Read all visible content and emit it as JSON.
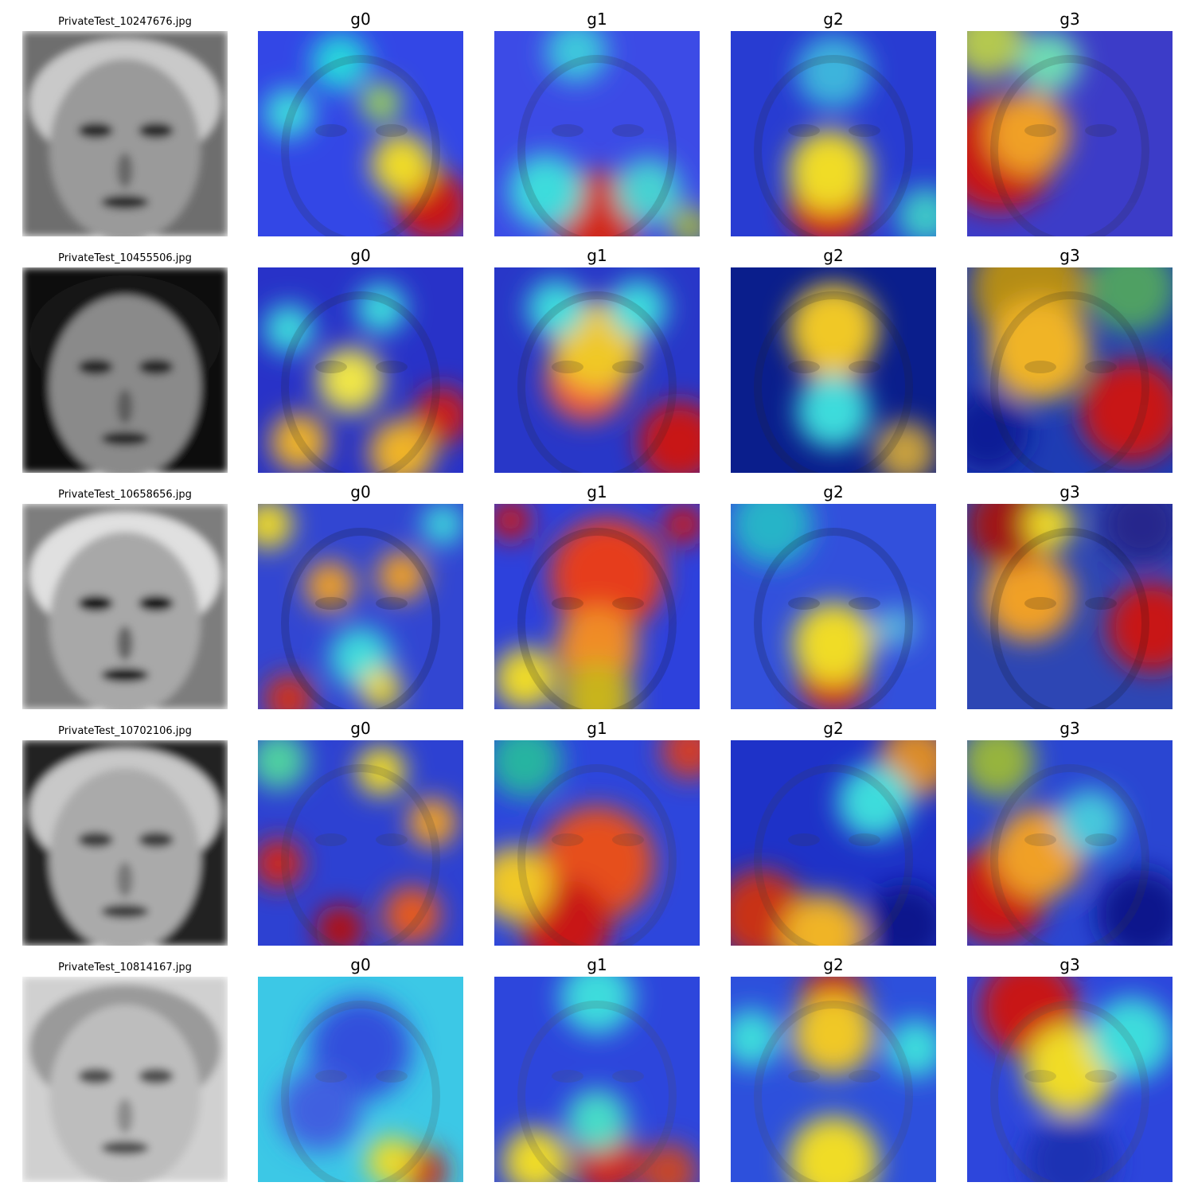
{
  "columns": [
    "g0",
    "g1",
    "g2",
    "g3"
  ],
  "rows": [
    {
      "filename": "PrivateTest_10247676.jpg",
      "face": {
        "bg": "#6e6e6e",
        "skin": "#9a9a9a",
        "hair": "#c9c9c9",
        "feature": "#2a2a2a"
      },
      "maps": [
        {
          "base": "#3347e6",
          "blobs": [
            [
              0.85,
              0.85,
              0.18,
              "#c81414"
            ],
            [
              0.7,
              0.65,
              0.15,
              "#f0dc28"
            ],
            [
              0.4,
              0.15,
              0.14,
              "#28d7dc"
            ],
            [
              0.15,
              0.4,
              0.12,
              "#3cdcdc"
            ],
            [
              0.6,
              0.35,
              0.1,
              "#9bd25a"
            ]
          ]
        },
        {
          "base": "#3c4be6",
          "blobs": [
            [
              0.5,
              0.9,
              0.22,
              "#d22814"
            ],
            [
              0.25,
              0.78,
              0.18,
              "#3cdcdc"
            ],
            [
              0.75,
              0.78,
              0.16,
              "#46d2d2"
            ],
            [
              0.4,
              0.1,
              0.15,
              "#3cc8dc"
            ],
            [
              0.95,
              0.95,
              0.1,
              "#a0b43c"
            ]
          ]
        },
        {
          "base": "#283cd2",
          "blobs": [
            [
              0.48,
              0.85,
              0.2,
              "#d21e14"
            ],
            [
              0.48,
              0.68,
              0.2,
              "#f0dc28"
            ],
            [
              0.5,
              0.2,
              0.18,
              "#3cb4dc"
            ],
            [
              0.95,
              0.9,
              0.14,
              "#3cc8c8"
            ]
          ]
        },
        {
          "base": "#3c3cc8",
          "blobs": [
            [
              0.15,
              0.6,
              0.28,
              "#c81414"
            ],
            [
              0.3,
              0.5,
              0.2,
              "#f0a028"
            ],
            [
              0.1,
              0.05,
              0.18,
              "#b4c850"
            ],
            [
              0.4,
              0.15,
              0.15,
              "#6edcb4"
            ]
          ]
        }
      ]
    },
    {
      "filename": "PrivateTest_10455506.jpg",
      "face": {
        "bg": "#111111",
        "skin": "#8a8a8a",
        "hair": "#141414",
        "feature": "#262626"
      },
      "maps": [
        {
          "base": "#2832c8",
          "blobs": [
            [
              0.9,
              0.72,
              0.14,
              "#c81e1e"
            ],
            [
              0.7,
              0.9,
              0.16,
              "#f0b428"
            ],
            [
              0.45,
              0.55,
              0.16,
              "#f0e646"
            ],
            [
              0.2,
              0.85,
              0.14,
              "#f0b428"
            ],
            [
              0.6,
              0.2,
              0.12,
              "#3cdcdc"
            ],
            [
              0.15,
              0.3,
              0.12,
              "#3cdcdc"
            ]
          ]
        },
        {
          "base": "#2837c8",
          "blobs": [
            [
              0.45,
              0.55,
              0.2,
              "#f05a3c"
            ],
            [
              0.5,
              0.38,
              0.22,
              "#f0c828"
            ],
            [
              0.9,
              0.85,
              0.2,
              "#c81414"
            ],
            [
              0.3,
              0.2,
              0.14,
              "#3cdcdc"
            ],
            [
              0.7,
              0.2,
              0.14,
              "#3cdcdc"
            ]
          ]
        },
        {
          "base": "#0a1e8c",
          "blobs": [
            [
              0.5,
              0.48,
              0.15,
              "#d21e1e"
            ],
            [
              0.5,
              0.3,
              0.22,
              "#f0c828"
            ],
            [
              0.5,
              0.7,
              0.18,
              "#3cdcdc"
            ],
            [
              0.85,
              0.9,
              0.15,
              "#c8a03c"
            ]
          ]
        },
        {
          "base": "#1e3cb4",
          "blobs": [
            [
              0.3,
              0.1,
              0.28,
              "#b48c14"
            ],
            [
              0.8,
              0.1,
              0.22,
              "#50a064"
            ],
            [
              0.35,
              0.4,
              0.25,
              "#f0b428"
            ],
            [
              0.8,
              0.7,
              0.25,
              "#c81414"
            ],
            [
              0.1,
              0.8,
              0.2,
              "#0a1e96"
            ]
          ]
        }
      ]
    },
    {
      "filename": "PrivateTest_10658656.jpg",
      "face": {
        "bg": "#7d7d7d",
        "skin": "#a8a8a8",
        "hair": "#e0e0e0",
        "feature": "#111111"
      },
      "maps": [
        {
          "base": "#3246d2",
          "blobs": [
            [
              0.35,
              0.4,
              0.12,
              "#f0a028"
            ],
            [
              0.7,
              0.35,
              0.12,
              "#f0a028"
            ],
            [
              0.05,
              0.1,
              0.12,
              "#f0dc28"
            ],
            [
              0.9,
              0.1,
              0.1,
              "#3cdcdc"
            ],
            [
              0.5,
              0.75,
              0.15,
              "#3cdcdc"
            ],
            [
              0.15,
              0.95,
              0.12,
              "#d23214"
            ],
            [
              0.6,
              0.9,
              0.1,
              "#f0dc28"
            ]
          ]
        },
        {
          "base": "#2d41dc",
          "blobs": [
            [
              0.55,
              0.35,
              0.28,
              "#e63c1e"
            ],
            [
              0.5,
              0.7,
              0.2,
              "#f08c28"
            ],
            [
              0.08,
              0.08,
              0.1,
              "#c81414"
            ],
            [
              0.92,
              0.1,
              0.1,
              "#c81414"
            ],
            [
              0.5,
              0.95,
              0.18,
              "#c8b41e"
            ],
            [
              0.15,
              0.85,
              0.15,
              "#f0dc28"
            ]
          ]
        },
        {
          "base": "#3250dc",
          "blobs": [
            [
              0.5,
              0.85,
              0.17,
              "#d21e14"
            ],
            [
              0.5,
              0.68,
              0.2,
              "#f0dc28"
            ],
            [
              0.2,
              0.1,
              0.2,
              "#28b4c8"
            ],
            [
              0.8,
              0.6,
              0.1,
              "#5ab4dc"
            ]
          ]
        },
        {
          "base": "#2d46b4",
          "blobs": [
            [
              0.3,
              0.45,
              0.22,
              "#f0a028"
            ],
            [
              0.2,
              0.1,
              0.2,
              "#a01414"
            ],
            [
              0.9,
              0.6,
              0.22,
              "#c81414"
            ],
            [
              0.4,
              0.1,
              0.12,
              "#f0dc28"
            ],
            [
              0.85,
              0.1,
              0.2,
              "#28288c"
            ]
          ]
        }
      ]
    },
    {
      "filename": "PrivateTest_10702106.jpg",
      "face": {
        "bg": "#202020",
        "skin": "#aaaaaa",
        "hair": "#c8c8c8",
        "feature": "#3c3c3c"
      },
      "maps": [
        {
          "base": "#2d41d2",
          "blobs": [
            [
              0.4,
              0.92,
              0.12,
              "#b40a0a"
            ],
            [
              0.1,
              0.6,
              0.12,
              "#d22814"
            ],
            [
              0.75,
              0.85,
              0.14,
              "#e65a1e"
            ],
            [
              0.6,
              0.15,
              0.12,
              "#f0dc28"
            ],
            [
              0.1,
              0.1,
              0.14,
              "#50d2a0"
            ],
            [
              0.85,
              0.4,
              0.12,
              "#f0a028"
            ]
          ]
        },
        {
          "base": "#2d46dc",
          "blobs": [
            [
              0.5,
              0.6,
              0.28,
              "#e6501e"
            ],
            [
              0.35,
              0.9,
              0.22,
              "#c81414"
            ],
            [
              0.1,
              0.7,
              0.18,
              "#f0c828"
            ],
            [
              0.95,
              0.05,
              0.14,
              "#d23c28"
            ],
            [
              0.15,
              0.1,
              0.18,
              "#28b4a0"
            ]
          ]
        },
        {
          "base": "#1e32c8",
          "blobs": [
            [
              0.15,
              0.85,
              0.22,
              "#c83214"
            ],
            [
              0.45,
              0.95,
              0.2,
              "#f0b428"
            ],
            [
              0.9,
              0.1,
              0.18,
              "#dc8c28"
            ],
            [
              0.7,
              0.3,
              0.18,
              "#3cdcdc"
            ],
            [
              0.85,
              0.9,
              0.2,
              "#0a148c"
            ]
          ]
        },
        {
          "base": "#2a46d2",
          "blobs": [
            [
              0.15,
              0.75,
              0.24,
              "#c81414"
            ],
            [
              0.35,
              0.55,
              0.22,
              "#f0a028"
            ],
            [
              0.15,
              0.1,
              0.18,
              "#96b43c"
            ],
            [
              0.85,
              0.85,
              0.22,
              "#0a148c"
            ],
            [
              0.6,
              0.4,
              0.16,
              "#46c8dc"
            ]
          ]
        }
      ]
    },
    {
      "filename": "PrivateTest_10814167.jpg",
      "face": {
        "bg": "#d0d0d0",
        "skin": "#bdbdbd",
        "hair": "#9a9a9a",
        "feature": "#505050"
      },
      "maps": [
        {
          "base": "#3cc8e6",
          "blobs": [
            [
              0.5,
              0.35,
              0.25,
              "#3250dc"
            ],
            [
              0.3,
              0.65,
              0.2,
              "#4160e0"
            ],
            [
              0.8,
              0.95,
              0.12,
              "#c81e14"
            ],
            [
              0.65,
              0.9,
              0.12,
              "#f0dc28"
            ]
          ]
        },
        {
          "base": "#2d46dc",
          "blobs": [
            [
              0.55,
              0.9,
              0.16,
              "#d22814"
            ],
            [
              0.2,
              0.9,
              0.16,
              "#f0dc28"
            ],
            [
              0.85,
              0.95,
              0.14,
              "#c84628"
            ],
            [
              0.5,
              0.1,
              0.18,
              "#3cdcdc"
            ],
            [
              0.5,
              0.7,
              0.15,
              "#46dcc8"
            ]
          ]
        },
        {
          "base": "#2d50dc",
          "blobs": [
            [
              0.5,
              0.1,
              0.16,
              "#c81414"
            ],
            [
              0.5,
              0.28,
              0.2,
              "#f0c828"
            ],
            [
              0.5,
              0.9,
              0.22,
              "#f0dc28"
            ],
            [
              0.1,
              0.3,
              0.14,
              "#3cdcdc"
            ],
            [
              0.9,
              0.35,
              0.14,
              "#3cdcdc"
            ]
          ]
        },
        {
          "base": "#2d46dc",
          "blobs": [
            [
              0.3,
              0.15,
              0.24,
              "#c81414"
            ],
            [
              0.5,
              0.45,
              0.22,
              "#f0dc28"
            ],
            [
              0.8,
              0.3,
              0.2,
              "#3cdcdc"
            ],
            [
              0.5,
              0.9,
              0.22,
              "#1e32b4"
            ]
          ]
        }
      ]
    }
  ]
}
